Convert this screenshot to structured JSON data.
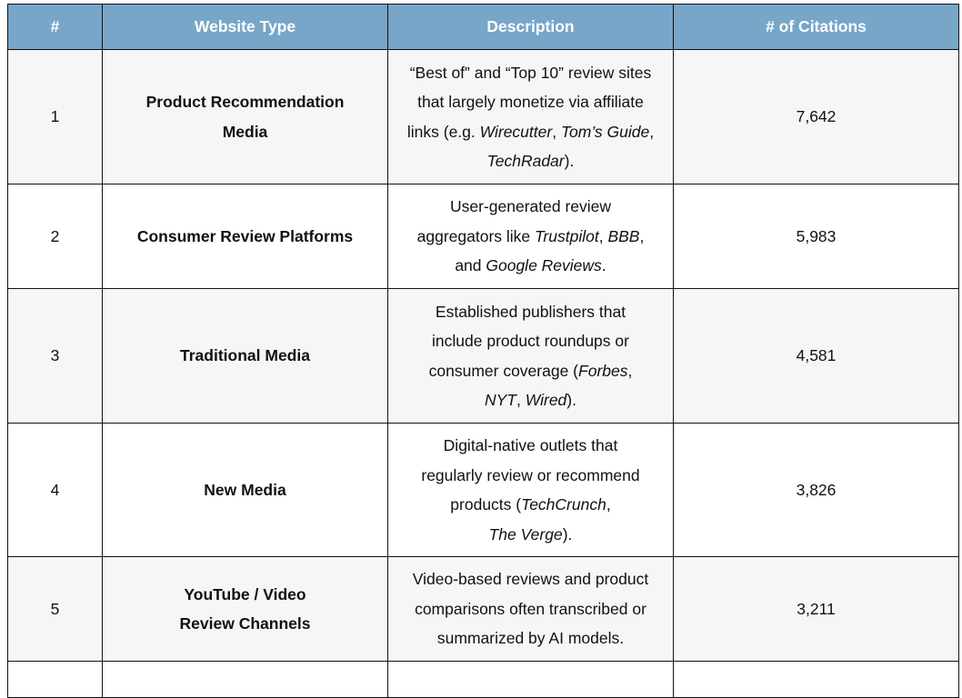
{
  "header": {
    "num": "#",
    "type": "Website Type",
    "description": "Description",
    "citations": "# of Citations"
  },
  "colors": {
    "header_bg": "#77a6c8",
    "stripe_bg": "#f6f6f6"
  },
  "rows": [
    {
      "num": "1",
      "type_lines": [
        "Product Recommendation",
        "Media"
      ],
      "citations": "7,642",
      "desc_lines": [
        [
          {
            "t": "“Best of” and “Top 10” review sites",
            "i": false
          }
        ],
        [
          {
            "t": "that largely monetize via affiliate",
            "i": false
          }
        ],
        [
          {
            "t": "links (e.g. ",
            "i": false
          },
          {
            "t": "Wirecutter",
            "i": true
          },
          {
            "t": ", ",
            "i": false
          },
          {
            "t": "Tom’s Guide",
            "i": true
          },
          {
            "t": ",",
            "i": false
          }
        ],
        [
          {
            "t": "TechRadar",
            "i": true
          },
          {
            "t": ").",
            "i": false
          }
        ]
      ],
      "height": 148
    },
    {
      "num": "2",
      "type_lines": [
        "Consumer Review Platforms"
      ],
      "citations": "5,983",
      "desc_lines": [
        [
          {
            "t": "User-generated review",
            "i": false
          }
        ],
        [
          {
            "t": "aggregators like ",
            "i": false
          },
          {
            "t": "Trustpilot",
            "i": true
          },
          {
            "t": ", ",
            "i": false
          },
          {
            "t": "BBB",
            "i": true
          },
          {
            "t": ",",
            "i": false
          }
        ],
        [
          {
            "t": "and ",
            "i": false
          },
          {
            "t": "Google Reviews",
            "i": true
          },
          {
            "t": ".",
            "i": false
          }
        ]
      ],
      "height": 115
    },
    {
      "num": "3",
      "type_lines": [
        "Traditional Media"
      ],
      "citations": "4,581",
      "desc_lines": [
        [
          {
            "t": "Established publishers that",
            "i": false
          }
        ],
        [
          {
            "t": "include product roundups or",
            "i": false
          }
        ],
        [
          {
            "t": "consumer coverage (",
            "i": false
          },
          {
            "t": "Forbes",
            "i": true
          },
          {
            "t": ",",
            "i": false
          }
        ],
        [
          {
            "t": "NYT",
            "i": true
          },
          {
            "t": ", ",
            "i": false
          },
          {
            "t": "Wired",
            "i": true
          },
          {
            "t": ").",
            "i": false
          }
        ]
      ],
      "height": 148
    },
    {
      "num": "4",
      "type_lines": [
        "New Media"
      ],
      "citations": "3,826",
      "desc_lines": [
        [
          {
            "t": "Digital-native outlets that",
            "i": false
          }
        ],
        [
          {
            "t": "regularly review or recommend",
            "i": false
          }
        ],
        [
          {
            "t": "products (",
            "i": false
          },
          {
            "t": "TechCrunch",
            "i": true
          },
          {
            "t": ",",
            "i": false
          }
        ],
        [
          {
            "t": "The Verge",
            "i": true
          },
          {
            "t": ").",
            "i": false
          }
        ]
      ],
      "height": 147
    },
    {
      "num": "5",
      "type_lines": [
        "YouTube / Video",
        "Review Channels"
      ],
      "citations": "3,211",
      "desc_lines": [
        [
          {
            "t": "Video-based reviews and product",
            "i": false
          }
        ],
        [
          {
            "t": "comparisons often transcribed or",
            "i": false
          }
        ],
        [
          {
            "t": "summarized by AI models.",
            "i": false
          }
        ]
      ],
      "height": 115
    },
    {
      "num": "",
      "type_lines": [],
      "citations": "",
      "desc_lines": [],
      "height": 40
    }
  ]
}
